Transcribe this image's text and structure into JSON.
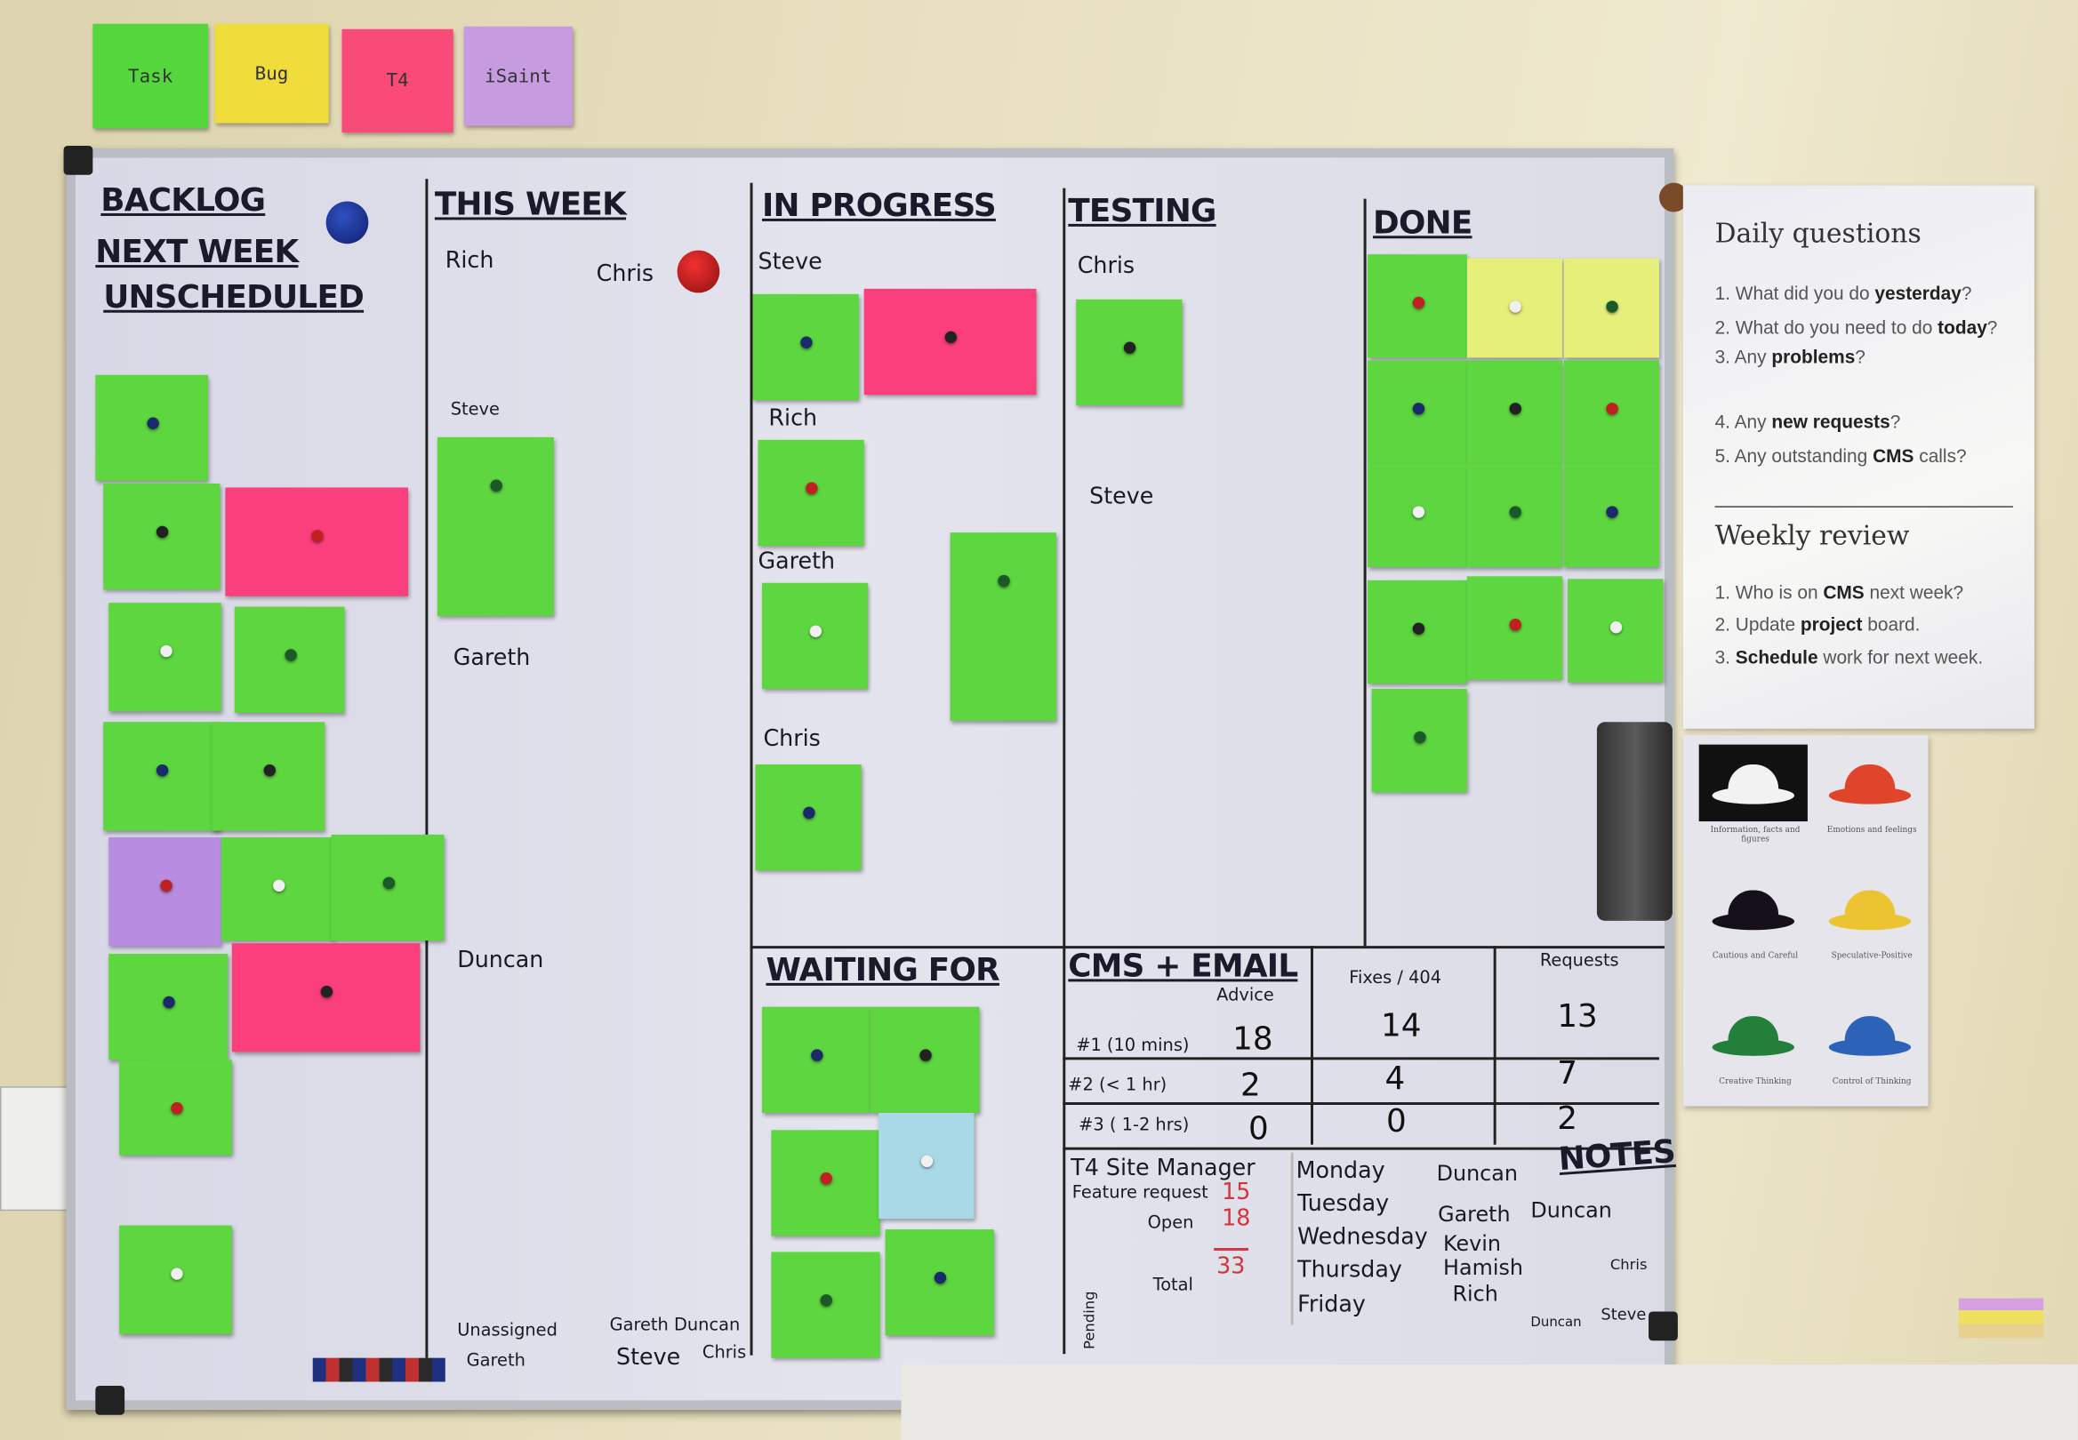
{
  "legend": [
    {
      "label": "Task",
      "color": "#55d63c"
    },
    {
      "label": "Bug",
      "color": "#f0dc3a"
    },
    {
      "label": "T4",
      "color": "#fa4a78"
    },
    {
      "label": "iSaint",
      "color": "#c79be0"
    }
  ],
  "colors": {
    "task": "#5ed640",
    "bug_yellow": "#e6ef7a",
    "t4_pink": "#fb3f7d",
    "isaint_purple": "#b88ce0",
    "light_blue": "#a9d9e6"
  },
  "board": {
    "columns": {
      "backlog": "BACKLOG",
      "next_week": "NEXT WEEK",
      "unscheduled": "UNSCHEDULED",
      "this_week": "THIS WEEK",
      "in_progress": "IN PROGRESS",
      "testing": "TESTING",
      "done": "DONE",
      "waiting_for": "WAITING FOR"
    },
    "this_week": {
      "rich": "Rich",
      "chris": "Chris",
      "steve": "Steve",
      "gareth": "Gareth",
      "duncan": "Duncan",
      "unassigned": "Unassigned",
      "gareth2": "Gareth",
      "gareth_duncan": "Gareth Duncan",
      "steve2": "Steve",
      "chris2": "Chris"
    },
    "in_progress": {
      "steve": "Steve",
      "rich": "Rich",
      "gareth": "Gareth",
      "chris": "Chris"
    },
    "testing": {
      "chris": "Chris",
      "steve": "Steve"
    },
    "cms": {
      "title": "CMS + EMAIL",
      "headers": [
        "Advice",
        "Fixes / 404",
        "Requests"
      ],
      "rows": [
        {
          "label": "#1 (10 mins)",
          "values": [
            "18",
            "14",
            "13"
          ]
        },
        {
          "label": "#2 (< 1 hr)",
          "values": [
            "2",
            "4",
            "7"
          ]
        },
        {
          "label": "#3 ( 1-2 hrs)",
          "values": [
            "0",
            "0",
            "2"
          ]
        }
      ]
    },
    "t4": {
      "title": "T4 Site Manager",
      "feature_request": "Feature request",
      "feature_value": "15",
      "open": "Open",
      "open_value": "18",
      "total": "Total",
      "total_value": "33",
      "pending": "Pending"
    },
    "rota": {
      "days": [
        "Monday",
        "Tuesday",
        "Wednesday",
        "Thursday",
        "Friday"
      ],
      "names": [
        "Duncan",
        "Gareth",
        "Duncan",
        "Kevin",
        "Hamish",
        "Rich",
        "Chris",
        "Duncan",
        "Steve"
      ]
    },
    "notes_title": "NOTES"
  },
  "poster": {
    "daily_title": "Daily questions",
    "daily": [
      {
        "pre": "1. What did you do ",
        "bold": "yesterday",
        "post": "?"
      },
      {
        "pre": "2. What do you need to do ",
        "bold": "today",
        "post": "?"
      },
      {
        "pre": "3. Any ",
        "bold": "problems",
        "post": "?"
      },
      {
        "pre": "4. Any ",
        "bold": "new requests",
        "post": "?"
      },
      {
        "pre": "5. Any outstanding ",
        "bold": "CMS",
        "post": " calls?"
      }
    ],
    "weekly_title": "Weekly review",
    "weekly": [
      {
        "pre": "1. Who is on ",
        "bold": "CMS",
        "post": " next week?"
      },
      {
        "pre": "2. Update ",
        "bold": "project",
        "post": " board."
      },
      {
        "pre": "3. ",
        "bold": "Schedule",
        "post": " work for next week."
      }
    ]
  },
  "hats": [
    {
      "color": "#f2f2f2",
      "caption": "Information, facts and figures"
    },
    {
      "color": "#e0452c",
      "caption": "Emotions and feelings"
    },
    {
      "color": "#15101a",
      "caption": "Cautious and Careful"
    },
    {
      "color": "#ecc432",
      "caption": "Speculative-Positive"
    },
    {
      "color": "#23803a",
      "caption": "Creative Thinking"
    },
    {
      "color": "#2c63b8",
      "caption": "Control of Thinking"
    }
  ]
}
